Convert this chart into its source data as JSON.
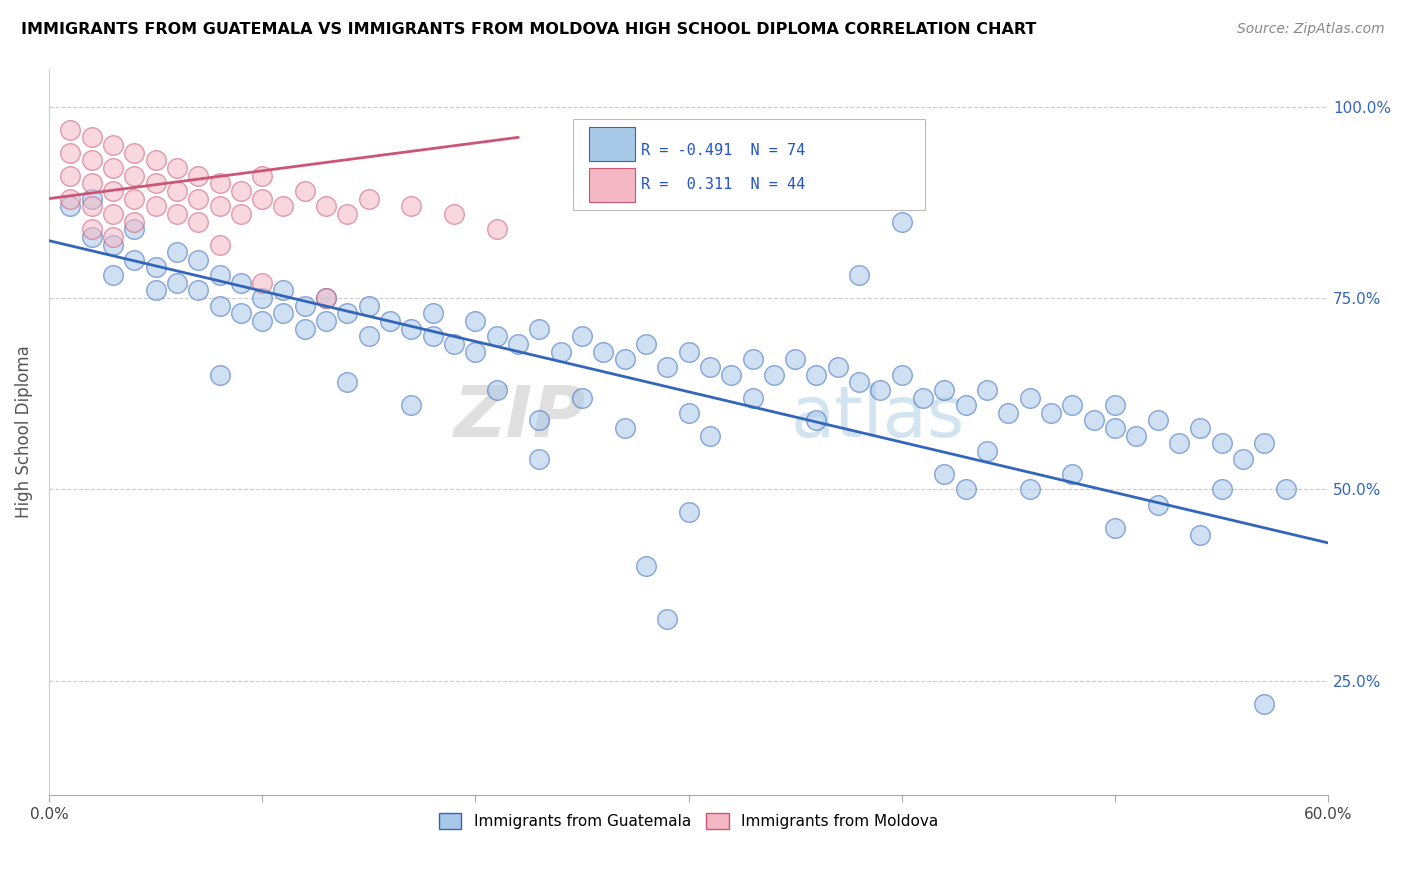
{
  "title": "IMMIGRANTS FROM GUATEMALA VS IMMIGRANTS FROM MOLDOVA HIGH SCHOOL DIPLOMA CORRELATION CHART",
  "source": "Source: ZipAtlas.com",
  "ylabel": "High School Diploma",
  "xlim": [
    0.0,
    0.6
  ],
  "ylim": [
    0.1,
    1.05
  ],
  "legend_R_blue": "-0.491",
  "legend_N_blue": "74",
  "legend_R_pink": "0.311",
  "legend_N_pink": "44",
  "blue_color": "#a8c8e8",
  "pink_color": "#f4b8c4",
  "trendline_blue": "#3366bb",
  "trendline_pink": "#cc5577",
  "watermark_zip": "ZIP",
  "watermark_atlas": "atlas",
  "blue_dots": [
    [
      0.01,
      0.87
    ],
    [
      0.02,
      0.88
    ],
    [
      0.02,
      0.83
    ],
    [
      0.03,
      0.82
    ],
    [
      0.03,
      0.78
    ],
    [
      0.04,
      0.84
    ],
    [
      0.04,
      0.8
    ],
    [
      0.05,
      0.79
    ],
    [
      0.05,
      0.76
    ],
    [
      0.06,
      0.81
    ],
    [
      0.06,
      0.77
    ],
    [
      0.07,
      0.8
    ],
    [
      0.07,
      0.76
    ],
    [
      0.08,
      0.78
    ],
    [
      0.08,
      0.74
    ],
    [
      0.09,
      0.77
    ],
    [
      0.09,
      0.73
    ],
    [
      0.1,
      0.75
    ],
    [
      0.1,
      0.72
    ],
    [
      0.11,
      0.76
    ],
    [
      0.11,
      0.73
    ],
    [
      0.12,
      0.74
    ],
    [
      0.12,
      0.71
    ],
    [
      0.13,
      0.75
    ],
    [
      0.13,
      0.72
    ],
    [
      0.14,
      0.73
    ],
    [
      0.15,
      0.74
    ],
    [
      0.15,
      0.7
    ],
    [
      0.16,
      0.72
    ],
    [
      0.17,
      0.71
    ],
    [
      0.18,
      0.73
    ],
    [
      0.18,
      0.7
    ],
    [
      0.19,
      0.69
    ],
    [
      0.2,
      0.72
    ],
    [
      0.2,
      0.68
    ],
    [
      0.21,
      0.7
    ],
    [
      0.22,
      0.69
    ],
    [
      0.23,
      0.71
    ],
    [
      0.24,
      0.68
    ],
    [
      0.25,
      0.7
    ],
    [
      0.26,
      0.68
    ],
    [
      0.27,
      0.67
    ],
    [
      0.28,
      0.69
    ],
    [
      0.29,
      0.66
    ],
    [
      0.3,
      0.68
    ],
    [
      0.31,
      0.66
    ],
    [
      0.32,
      0.65
    ],
    [
      0.33,
      0.67
    ],
    [
      0.34,
      0.65
    ],
    [
      0.35,
      0.67
    ],
    [
      0.36,
      0.65
    ],
    [
      0.37,
      0.66
    ],
    [
      0.38,
      0.64
    ],
    [
      0.39,
      0.63
    ],
    [
      0.4,
      0.65
    ],
    [
      0.41,
      0.62
    ],
    [
      0.42,
      0.63
    ],
    [
      0.43,
      0.61
    ],
    [
      0.44,
      0.63
    ],
    [
      0.45,
      0.6
    ],
    [
      0.46,
      0.62
    ],
    [
      0.47,
      0.6
    ],
    [
      0.48,
      0.61
    ],
    [
      0.49,
      0.59
    ],
    [
      0.5,
      0.61
    ],
    [
      0.5,
      0.58
    ],
    [
      0.51,
      0.57
    ],
    [
      0.52,
      0.59
    ],
    [
      0.53,
      0.56
    ],
    [
      0.54,
      0.58
    ],
    [
      0.55,
      0.56
    ],
    [
      0.56,
      0.54
    ],
    [
      0.57,
      0.56
    ],
    [
      0.58,
      0.5
    ]
  ],
  "blue_dots_scattered": [
    [
      0.08,
      0.65
    ],
    [
      0.14,
      0.64
    ],
    [
      0.17,
      0.61
    ],
    [
      0.21,
      0.63
    ],
    [
      0.23,
      0.59
    ],
    [
      0.25,
      0.62
    ],
    [
      0.27,
      0.58
    ],
    [
      0.3,
      0.6
    ],
    [
      0.31,
      0.57
    ],
    [
      0.33,
      0.62
    ],
    [
      0.36,
      0.59
    ],
    [
      0.38,
      0.78
    ],
    [
      0.4,
      0.85
    ],
    [
      0.42,
      0.52
    ],
    [
      0.44,
      0.55
    ],
    [
      0.46,
      0.5
    ],
    [
      0.48,
      0.52
    ],
    [
      0.5,
      0.45
    ],
    [
      0.52,
      0.48
    ],
    [
      0.54,
      0.44
    ],
    [
      0.55,
      0.5
    ],
    [
      0.57,
      0.22
    ],
    [
      0.3,
      0.47
    ],
    [
      0.28,
      0.4
    ],
    [
      0.29,
      0.33
    ],
    [
      0.43,
      0.5
    ],
    [
      0.23,
      0.54
    ]
  ],
  "pink_dots": [
    [
      0.01,
      0.97
    ],
    [
      0.01,
      0.94
    ],
    [
      0.01,
      0.91
    ],
    [
      0.01,
      0.88
    ],
    [
      0.02,
      0.96
    ],
    [
      0.02,
      0.93
    ],
    [
      0.02,
      0.9
    ],
    [
      0.02,
      0.87
    ],
    [
      0.02,
      0.84
    ],
    [
      0.03,
      0.95
    ],
    [
      0.03,
      0.92
    ],
    [
      0.03,
      0.89
    ],
    [
      0.03,
      0.86
    ],
    [
      0.03,
      0.83
    ],
    [
      0.04,
      0.94
    ],
    [
      0.04,
      0.91
    ],
    [
      0.04,
      0.88
    ],
    [
      0.04,
      0.85
    ],
    [
      0.05,
      0.93
    ],
    [
      0.05,
      0.9
    ],
    [
      0.05,
      0.87
    ],
    [
      0.06,
      0.92
    ],
    [
      0.06,
      0.89
    ],
    [
      0.06,
      0.86
    ],
    [
      0.07,
      0.91
    ],
    [
      0.07,
      0.88
    ],
    [
      0.07,
      0.85
    ],
    [
      0.08,
      0.9
    ],
    [
      0.08,
      0.87
    ],
    [
      0.08,
      0.82
    ],
    [
      0.09,
      0.89
    ],
    [
      0.09,
      0.86
    ],
    [
      0.1,
      0.91
    ],
    [
      0.1,
      0.88
    ],
    [
      0.11,
      0.87
    ],
    [
      0.12,
      0.89
    ],
    [
      0.13,
      0.87
    ],
    [
      0.14,
      0.86
    ],
    [
      0.15,
      0.88
    ],
    [
      0.17,
      0.87
    ],
    [
      0.19,
      0.86
    ],
    [
      0.21,
      0.84
    ],
    [
      0.1,
      0.77
    ],
    [
      0.13,
      0.75
    ]
  ],
  "blue_trendline": [
    [
      0.0,
      0.825
    ],
    [
      0.6,
      0.43
    ]
  ],
  "pink_trendline": [
    [
      0.0,
      0.88
    ],
    [
      0.22,
      0.96
    ]
  ]
}
